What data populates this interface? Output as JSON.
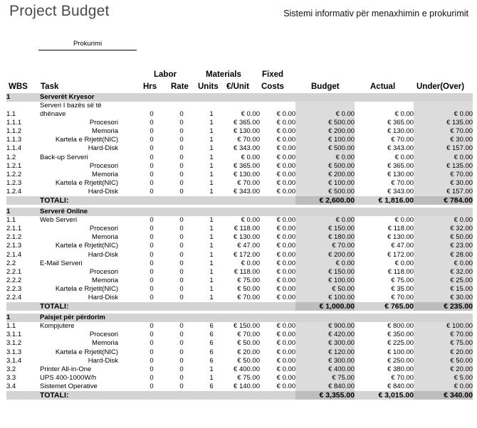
{
  "title": "Project Budget",
  "subtitle": "Sistemi informativ për menaxhimin e prokurimit",
  "signature_label": "Prokurimi",
  "headers": {
    "wbs": "WBS",
    "task": "Task",
    "labor_group": "Labor",
    "hrs": "Hrs",
    "rate": "Rate",
    "materials_group": "Materials",
    "units": "Units",
    "eur_unit": "€/Unit",
    "fixed_group": "Fixed",
    "costs": "Costs",
    "budget": "Budget",
    "actual": "Actual",
    "under_over": "Under(Over)"
  },
  "sections": [
    {
      "wbs": "1",
      "name": "Serverët Kryesor",
      "rows": [
        {
          "wbs": "1.1",
          "task": "Serveri I bazës së të dhënave",
          "sub": false,
          "wrap": true,
          "hrs": "0",
          "rate": "0",
          "units": "1",
          "per_unit": "€ 0.00",
          "fixed": "€ 0.00",
          "budget": "€ 0.00",
          "actual": "€ 0.00",
          "under": "€ 0.00"
        },
        {
          "wbs": "1.1.1",
          "task": "Procesori",
          "sub": true,
          "hrs": "0",
          "rate": "0",
          "units": "1",
          "per_unit": "€ 365.00",
          "fixed": "€ 0.00",
          "budget": "€ 500.00",
          "actual": "€ 365.00",
          "under": "€ 135.00"
        },
        {
          "wbs": "1.1.2",
          "task": "Memoria",
          "sub": true,
          "hrs": "0",
          "rate": "0",
          "units": "1",
          "per_unit": "€ 130.00",
          "fixed": "€ 0.00",
          "budget": "€ 200.00",
          "actual": "€ 130.00",
          "under": "€ 70.00"
        },
        {
          "wbs": "1.1.3",
          "task": "Kartela e Rrjetit(NIC)",
          "sub": true,
          "hrs": "0",
          "rate": "0",
          "units": "1",
          "per_unit": "€ 70.00",
          "fixed": "€ 0.00",
          "budget": "€ 100.00",
          "actual": "€ 70.00",
          "under": "€ 30.00"
        },
        {
          "wbs": "1.1.4",
          "task": "Hard-Disk",
          "sub": true,
          "hrs": "0",
          "rate": "0",
          "units": "1",
          "per_unit": "€ 343.00",
          "fixed": "€ 0.00",
          "budget": "€ 500.00",
          "actual": "€ 343.00",
          "under": "€ 157.00"
        },
        {
          "wbs": "1.2",
          "task": "Back-up Serveri",
          "sub": false,
          "hrs": "0",
          "rate": "0",
          "units": "1",
          "per_unit": "€ 0.00",
          "fixed": "€ 0.00",
          "budget": "€ 0.00",
          "actual": "€ 0.00",
          "under": "€ 0.00"
        },
        {
          "wbs": "1.2.1",
          "task": "Procesori",
          "sub": true,
          "hrs": "0",
          "rate": "0",
          "units": "1",
          "per_unit": "€ 365.00",
          "fixed": "€ 0.00",
          "budget": "€ 500.00",
          "actual": "€ 365.00",
          "under": "€ 135.00"
        },
        {
          "wbs": "1.2.2",
          "task": "Memoria",
          "sub": true,
          "hrs": "0",
          "rate": "0",
          "units": "1",
          "per_unit": "€ 130.00",
          "fixed": "€ 0.00",
          "budget": "€ 200.00",
          "actual": "€ 130.00",
          "under": "€ 70.00"
        },
        {
          "wbs": "1.2.3",
          "task": "Kartela e Rrjetit(NIC)",
          "sub": true,
          "hrs": "0",
          "rate": "0",
          "units": "1",
          "per_unit": "€ 70.00",
          "fixed": "€ 0.00",
          "budget": "€ 100.00",
          "actual": "€ 70.00",
          "under": "€ 30.00"
        },
        {
          "wbs": "1.2.4",
          "task": "Hard-Disk",
          "sub": true,
          "hrs": "0",
          "rate": "0",
          "units": "1",
          "per_unit": "€ 343.00",
          "fixed": "€ 0.00",
          "budget": "€ 500.00",
          "actual": "€ 343.00",
          "under": "€ 157.00"
        }
      ],
      "total": {
        "label": "TOTALI:",
        "budget": "€ 2,600.00",
        "actual": "€ 1,816.00",
        "under": "€ 784.00"
      }
    },
    {
      "wbs": "1",
      "name": "Serverë Online",
      "rows": [
        {
          "wbs": "1.1",
          "task": "Web Serveri",
          "sub": false,
          "hrs": "0",
          "rate": "0",
          "units": "1",
          "per_unit": "€ 0.00",
          "fixed": "€ 0.00",
          "budget": "€ 0.00",
          "actual": "€ 0.00",
          "under": "€ 0.00"
        },
        {
          "wbs": "2.1.1",
          "task": "Procesori",
          "sub": true,
          "hrs": "0",
          "rate": "0",
          "units": "1",
          "per_unit": "€ 118.00",
          "fixed": "€ 0.00",
          "budget": "€ 150.00",
          "actual": "€ 118.00",
          "under": "€ 32.00"
        },
        {
          "wbs": "2.1.2",
          "task": "Memoria",
          "sub": true,
          "hrs": "0",
          "rate": "0",
          "units": "1",
          "per_unit": "€ 130.00",
          "fixed": "€ 0.00",
          "budget": "€ 180.00",
          "actual": "€ 130.00",
          "under": "€ 50.00"
        },
        {
          "wbs": "2.1.3",
          "task": "Kartela e Rrjetit(NIC)",
          "sub": true,
          "hrs": "0",
          "rate": "0",
          "units": "1",
          "per_unit": "€ 47.00",
          "fixed": "€ 0.00",
          "budget": "€ 70.00",
          "actual": "€ 47.00",
          "under": "€ 23.00"
        },
        {
          "wbs": "2.1.4",
          "task": "Hard-Disk",
          "sub": true,
          "hrs": "0",
          "rate": "0",
          "units": "1",
          "per_unit": "€ 172.00",
          "fixed": "€ 0.00",
          "budget": "€ 200.00",
          "actual": "€ 172.00",
          "under": "€ 28.00"
        },
        {
          "wbs": "2.2",
          "task": "E-Mail Serveri",
          "sub": false,
          "hrs": "0",
          "rate": "0",
          "units": "1",
          "per_unit": "€ 0.00",
          "fixed": "€ 0.00",
          "budget": "€ 0.00",
          "actual": "€ 0.00",
          "under": "€ 0.00"
        },
        {
          "wbs": "2.2.1",
          "task": "Procesori",
          "sub": true,
          "hrs": "0",
          "rate": "0",
          "units": "1",
          "per_unit": "€ 118.00",
          "fixed": "€ 0.00",
          "budget": "€ 150.00",
          "actual": "€ 118.00",
          "under": "€ 32.00"
        },
        {
          "wbs": "2.2.2",
          "task": "Memoria",
          "sub": true,
          "hrs": "0",
          "rate": "0",
          "units": "1",
          "per_unit": "€ 75.00",
          "fixed": "€ 0.00",
          "budget": "€ 100.00",
          "actual": "€ 75.00",
          "under": "€ 25.00"
        },
        {
          "wbs": "2.2.3",
          "task": "Kartela e Rrjetit(NIC)",
          "sub": true,
          "hrs": "0",
          "rate": "0",
          "units": "1",
          "per_unit": "€ 50.00",
          "fixed": "€ 0.00",
          "budget": "€ 50.00",
          "actual": "€ 35.00",
          "under": "€ 15.00"
        },
        {
          "wbs": "2.2.4",
          "task": "Hard-Disk",
          "sub": true,
          "hrs": "0",
          "rate": "0",
          "units": "1",
          "per_unit": "€ 70.00",
          "fixed": "€ 0.00",
          "budget": "€ 100.00",
          "actual": "€ 70.00",
          "under": "€ 30.00"
        }
      ],
      "total": {
        "label": "TOTALI:",
        "budget": "€ 1,000.00",
        "actual": "€ 765.00",
        "under": "€ 235.00"
      }
    },
    {
      "wbs": "1",
      "name": "Paisjet për përdorim",
      "rows": [
        {
          "wbs": "1.1",
          "task": "Kompjutere",
          "sub": false,
          "hrs": "0",
          "rate": "0",
          "units": "6",
          "per_unit": "€ 150.00",
          "fixed": "€ 0.00",
          "budget": "€ 900.00",
          "actual": "€ 800.00",
          "under": "€ 100.00"
        },
        {
          "wbs": "3.1.1",
          "task": "Procesori",
          "sub": true,
          "hrs": "0",
          "rate": "0",
          "units": "6",
          "per_unit": "€ 70.00",
          "fixed": "€ 0.00",
          "budget": "€ 420.00",
          "actual": "€ 350.00",
          "under": "€ 70.00"
        },
        {
          "wbs": "3.1.2",
          "task": "Memoria",
          "sub": true,
          "hrs": "0",
          "rate": "0",
          "units": "6",
          "per_unit": "€ 50.00",
          "fixed": "€ 0.00",
          "budget": "€ 300.00",
          "actual": "€ 225.00",
          "under": "€ 75.00"
        },
        {
          "wbs": "3.1.3",
          "task": "Kartela e Rrjetit(NIC)",
          "sub": true,
          "hrs": "0",
          "rate": "0",
          "units": "6",
          "per_unit": "€ 20.00",
          "fixed": "€ 0.00",
          "budget": "€ 120.00",
          "actual": "€ 100.00",
          "under": "€ 20.00"
        },
        {
          "wbs": "3.1.4",
          "task": "Hard-Disk",
          "sub": true,
          "hrs": "0",
          "rate": "0",
          "units": "6",
          "per_unit": "€ 50.00",
          "fixed": "€ 0.00",
          "budget": "€ 300.00",
          "actual": "€ 250.00",
          "under": "€ 50.00"
        },
        {
          "wbs": "3.2",
          "task": "Printer All-in-One",
          "sub": false,
          "hrs": "0",
          "rate": "0",
          "units": "1",
          "per_unit": "€ 400.00",
          "fixed": "€ 0.00",
          "budget": "€ 400.00",
          "actual": "€ 380.00",
          "under": "€ 20.00"
        },
        {
          "wbs": "3.3",
          "task": "UPS 400-1000W/h",
          "sub": false,
          "hrs": "0",
          "rate": "0",
          "units": "1",
          "per_unit": "€ 75.00",
          "fixed": "€ 0.00",
          "budget": "€ 75.00",
          "actual": "€ 70.00",
          "under": "€ 5.00"
        },
        {
          "wbs": "3.4",
          "task": "Sistemet Operative",
          "sub": false,
          "hrs": "0",
          "rate": "0",
          "units": "6",
          "per_unit": "€ 140.00",
          "fixed": "€ 0.00",
          "budget": "€ 840.00",
          "actual": "€ 840.00",
          "under": "€ 0.00"
        }
      ],
      "total": {
        "label": "TOTALI:",
        "budget": "€ 3,355.00",
        "actual": "€ 3,015.00",
        "under": "€ 340.00"
      }
    }
  ]
}
